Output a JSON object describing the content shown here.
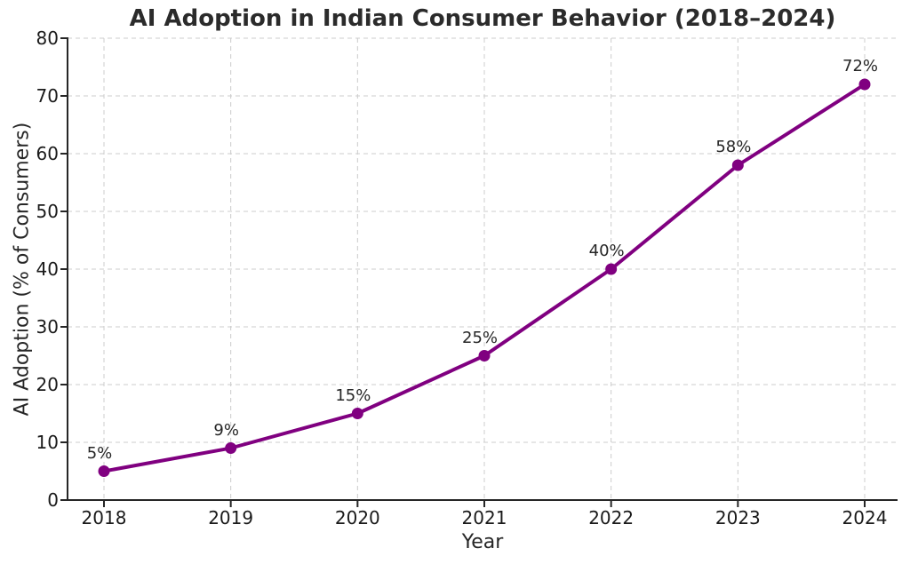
{
  "chart_data": {
    "type": "line",
    "title": "AI Adoption in Indian Consumer Behavior (2018–2024)",
    "xlabel": "Year",
    "ylabel": "AI Adoption (% of Consumers)",
    "categories": [
      "2018",
      "2019",
      "2020",
      "2021",
      "2022",
      "2023",
      "2024"
    ],
    "series": [
      {
        "name": "AI Adoption",
        "values": [
          5,
          9,
          15,
          25,
          40,
          58,
          72
        ],
        "point_labels": [
          "5%",
          "9%",
          "15%",
          "25%",
          "40%",
          "58%",
          "72%"
        ]
      }
    ],
    "ylim": [
      0,
      80
    ],
    "yticks": [
      0,
      10,
      20,
      30,
      40,
      50,
      60,
      70,
      80
    ],
    "grid": "dashed",
    "legend_position": "none",
    "line_color": "#800080",
    "marker": "circle",
    "grid_color": "#cccccc",
    "axis_color": "#262626",
    "background_color": "#ffffff"
  }
}
